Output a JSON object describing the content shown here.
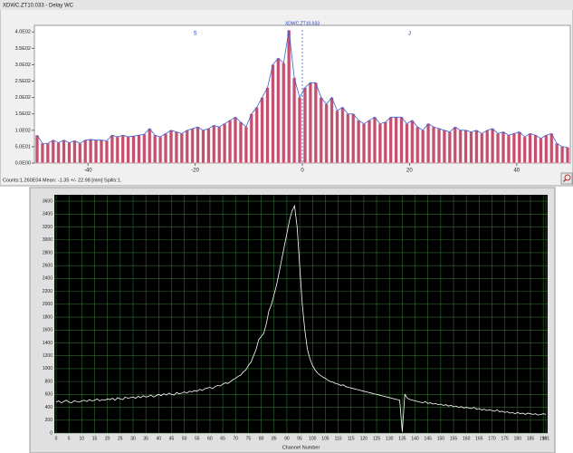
{
  "window_title": "XDWC.ZT10.033 - Delay WC",
  "status": "Counts:1.260E04  Mean: -1.35 +/- 22.98 [mm]  Spills:1.",
  "chart_data": [
    {
      "type": "histogram",
      "bins": [
        -50,
        -49,
        -48,
        -47,
        -46,
        -45,
        -44,
        -43,
        -42,
        -41,
        -40,
        -39,
        -38,
        -37,
        -36,
        -35,
        -34,
        -33,
        -32,
        -31,
        -30,
        -29,
        -28,
        -27,
        -26,
        -25,
        -24,
        -23,
        -22,
        -21,
        -20,
        -19,
        -18,
        -17,
        -16,
        -15,
        -14,
        -13,
        -12,
        -11,
        -10,
        -9,
        -8,
        -7,
        -6,
        -5,
        -4,
        -3,
        -2,
        -1,
        0,
        1,
        2,
        3,
        4,
        5,
        6,
        7,
        8,
        9,
        10,
        11,
        12,
        13,
        14,
        15,
        16,
        17,
        18,
        19,
        20,
        21,
        22,
        23,
        24,
        25,
        26,
        27,
        28,
        29,
        30,
        31,
        32,
        33,
        34,
        35,
        36,
        37,
        38,
        39,
        40,
        41,
        42,
        43,
        44,
        45,
        46,
        47,
        48,
        49,
        50
      ],
      "values": [
        85,
        60,
        60,
        70,
        62,
        70,
        62,
        68,
        60,
        70,
        72,
        70,
        70,
        68,
        85,
        80,
        85,
        80,
        82,
        85,
        88,
        105,
        85,
        80,
        90,
        100,
        95,
        90,
        100,
        105,
        110,
        100,
        105,
        115,
        110,
        120,
        130,
        140,
        125,
        110,
        150,
        170,
        200,
        230,
        300,
        320,
        305,
        405,
        260,
        200,
        230,
        245,
        245,
        200,
        180,
        200,
        160,
        170,
        150,
        150,
        130,
        120,
        130,
        140,
        120,
        125,
        140,
        140,
        140,
        120,
        130,
        110,
        100,
        120,
        110,
        105,
        100,
        95,
        110,
        100,
        100,
        95,
        100,
        90,
        100,
        105,
        90,
        95,
        85,
        90,
        95,
        80,
        90,
        85,
        75,
        85,
        90,
        60,
        50,
        48
      ],
      "color": "#c4506f",
      "line_color": "#3a5fcd",
      "xlim": [
        -50,
        50
      ],
      "xticks": [
        -40,
        -20,
        0,
        20,
        40
      ],
      "ylim": [
        0,
        420
      ],
      "yticks": [
        {
          "value": 0,
          "label": "0.0E00"
        },
        {
          "value": 50,
          "label": "5.0E01"
        },
        {
          "value": 100,
          "label": "1.0E02"
        },
        {
          "value": 150,
          "label": "1.5E02"
        },
        {
          "value": 200,
          "label": "2.0E02"
        },
        {
          "value": 250,
          "label": "2.5E02"
        },
        {
          "value": 300,
          "label": "3.0E02"
        },
        {
          "value": 350,
          "label": "3.5E02"
        },
        {
          "value": 400,
          "label": "4.0E02"
        }
      ],
      "markers": [
        {
          "x": -20,
          "label": "S"
        },
        {
          "x": 20,
          "label": "J"
        }
      ],
      "cursor": {
        "x": 0,
        "label": "XDWC.ZT10.033"
      }
    },
    {
      "type": "line",
      "xlabel": "Channel Number",
      "color": "#ffffff",
      "grid": true,
      "x": [
        0,
        1,
        2,
        3,
        4,
        5,
        6,
        7,
        8,
        9,
        10,
        11,
        12,
        13,
        14,
        15,
        16,
        17,
        18,
        19,
        20,
        21,
        22,
        23,
        24,
        25,
        26,
        27,
        28,
        29,
        30,
        31,
        32,
        33,
        34,
        35,
        36,
        37,
        38,
        39,
        40,
        41,
        42,
        43,
        44,
        45,
        46,
        47,
        48,
        49,
        50,
        51,
        52,
        53,
        54,
        55,
        56,
        57,
        58,
        59,
        60,
        61,
        62,
        63,
        64,
        65,
        66,
        67,
        68,
        69,
        70,
        71,
        72,
        73,
        74,
        75,
        76,
        77,
        78,
        79,
        80,
        81,
        82,
        83,
        84,
        85,
        86,
        87,
        88,
        89,
        90,
        91,
        92,
        93,
        94,
        95,
        96,
        97,
        98,
        99,
        100,
        101,
        102,
        103,
        104,
        105,
        106,
        107,
        108,
        109,
        110,
        111,
        112,
        113,
        114,
        115,
        116,
        117,
        118,
        119,
        120,
        121,
        122,
        123,
        124,
        125,
        126,
        127,
        128,
        129,
        130,
        131,
        132,
        133,
        134,
        135,
        136,
        137,
        138,
        139,
        140,
        141,
        142,
        143,
        144,
        145,
        146,
        147,
        148,
        149,
        150,
        151,
        152,
        153,
        154,
        155,
        156,
        157,
        158,
        159,
        160,
        161,
        162,
        163,
        164,
        165,
        166,
        167,
        168,
        169,
        170,
        171,
        172,
        173,
        174,
        175,
        176,
        177,
        178,
        179,
        180,
        181,
        182,
        183,
        184,
        185,
        186,
        187,
        188,
        189,
        190,
        191
      ],
      "values": [
        480,
        500,
        470,
        490,
        510,
        480,
        470,
        500,
        490,
        480,
        500,
        510,
        490,
        520,
        500,
        510,
        530,
        500,
        520,
        510,
        530,
        520,
        540,
        510,
        550,
        530,
        520,
        560,
        540,
        550,
        560,
        540,
        570,
        550,
        580,
        560,
        570,
        590,
        560,
        580,
        600,
        580,
        610,
        590,
        620,
        600,
        590,
        630,
        610,
        620,
        640,
        620,
        650,
        640,
        660,
        650,
        680,
        660,
        690,
        700,
        710,
        690,
        720,
        740,
        730,
        760,
        780,
        770,
        800,
        830,
        850,
        880,
        900,
        950,
        980,
        1050,
        1100,
        1200,
        1300,
        1450,
        1500,
        1550,
        1700,
        1900,
        2000,
        2150,
        2300,
        2500,
        2700,
        2900,
        3100,
        3300,
        3450,
        3530,
        3200,
        2600,
        2000,
        1600,
        1300,
        1150,
        1050,
        980,
        930,
        900,
        870,
        850,
        820,
        800,
        790,
        770,
        760,
        740,
        750,
        720,
        710,
        700,
        690,
        680,
        670,
        660,
        650,
        640,
        630,
        620,
        610,
        600,
        590,
        580,
        570,
        560,
        550,
        540,
        530,
        520,
        510,
        20,
        600,
        540,
        520,
        510,
        500,
        490,
        480,
        470,
        490,
        460,
        470,
        450,
        460,
        440,
        450,
        430,
        440,
        420,
        430,
        410,
        420,
        400,
        410,
        390,
        400,
        390,
        380,
        400,
        370,
        380,
        360,
        370,
        350,
        360,
        350,
        340,
        360,
        330,
        340,
        320,
        330,
        310,
        320,
        300,
        320,
        300,
        310,
        290,
        310,
        300,
        290,
        300,
        280,
        290,
        300,
        290
      ],
      "xlim": [
        0,
        191
      ],
      "xticks": [
        0,
        5,
        10,
        15,
        20,
        25,
        30,
        35,
        40,
        45,
        50,
        55,
        60,
        65,
        70,
        75,
        80,
        85,
        90,
        95,
        100,
        105,
        110,
        115,
        120,
        125,
        130,
        135,
        140,
        145,
        150,
        155,
        160,
        165,
        170,
        175,
        180,
        185,
        190,
        191
      ],
      "ylim": [
        0,
        3700
      ],
      "yticks": [
        0,
        200,
        400,
        600,
        800,
        1000,
        1200,
        1400,
        1600,
        1800,
        2000,
        2200,
        2400,
        2600,
        2800,
        3000,
        3200,
        3400,
        3600
      ]
    }
  ]
}
